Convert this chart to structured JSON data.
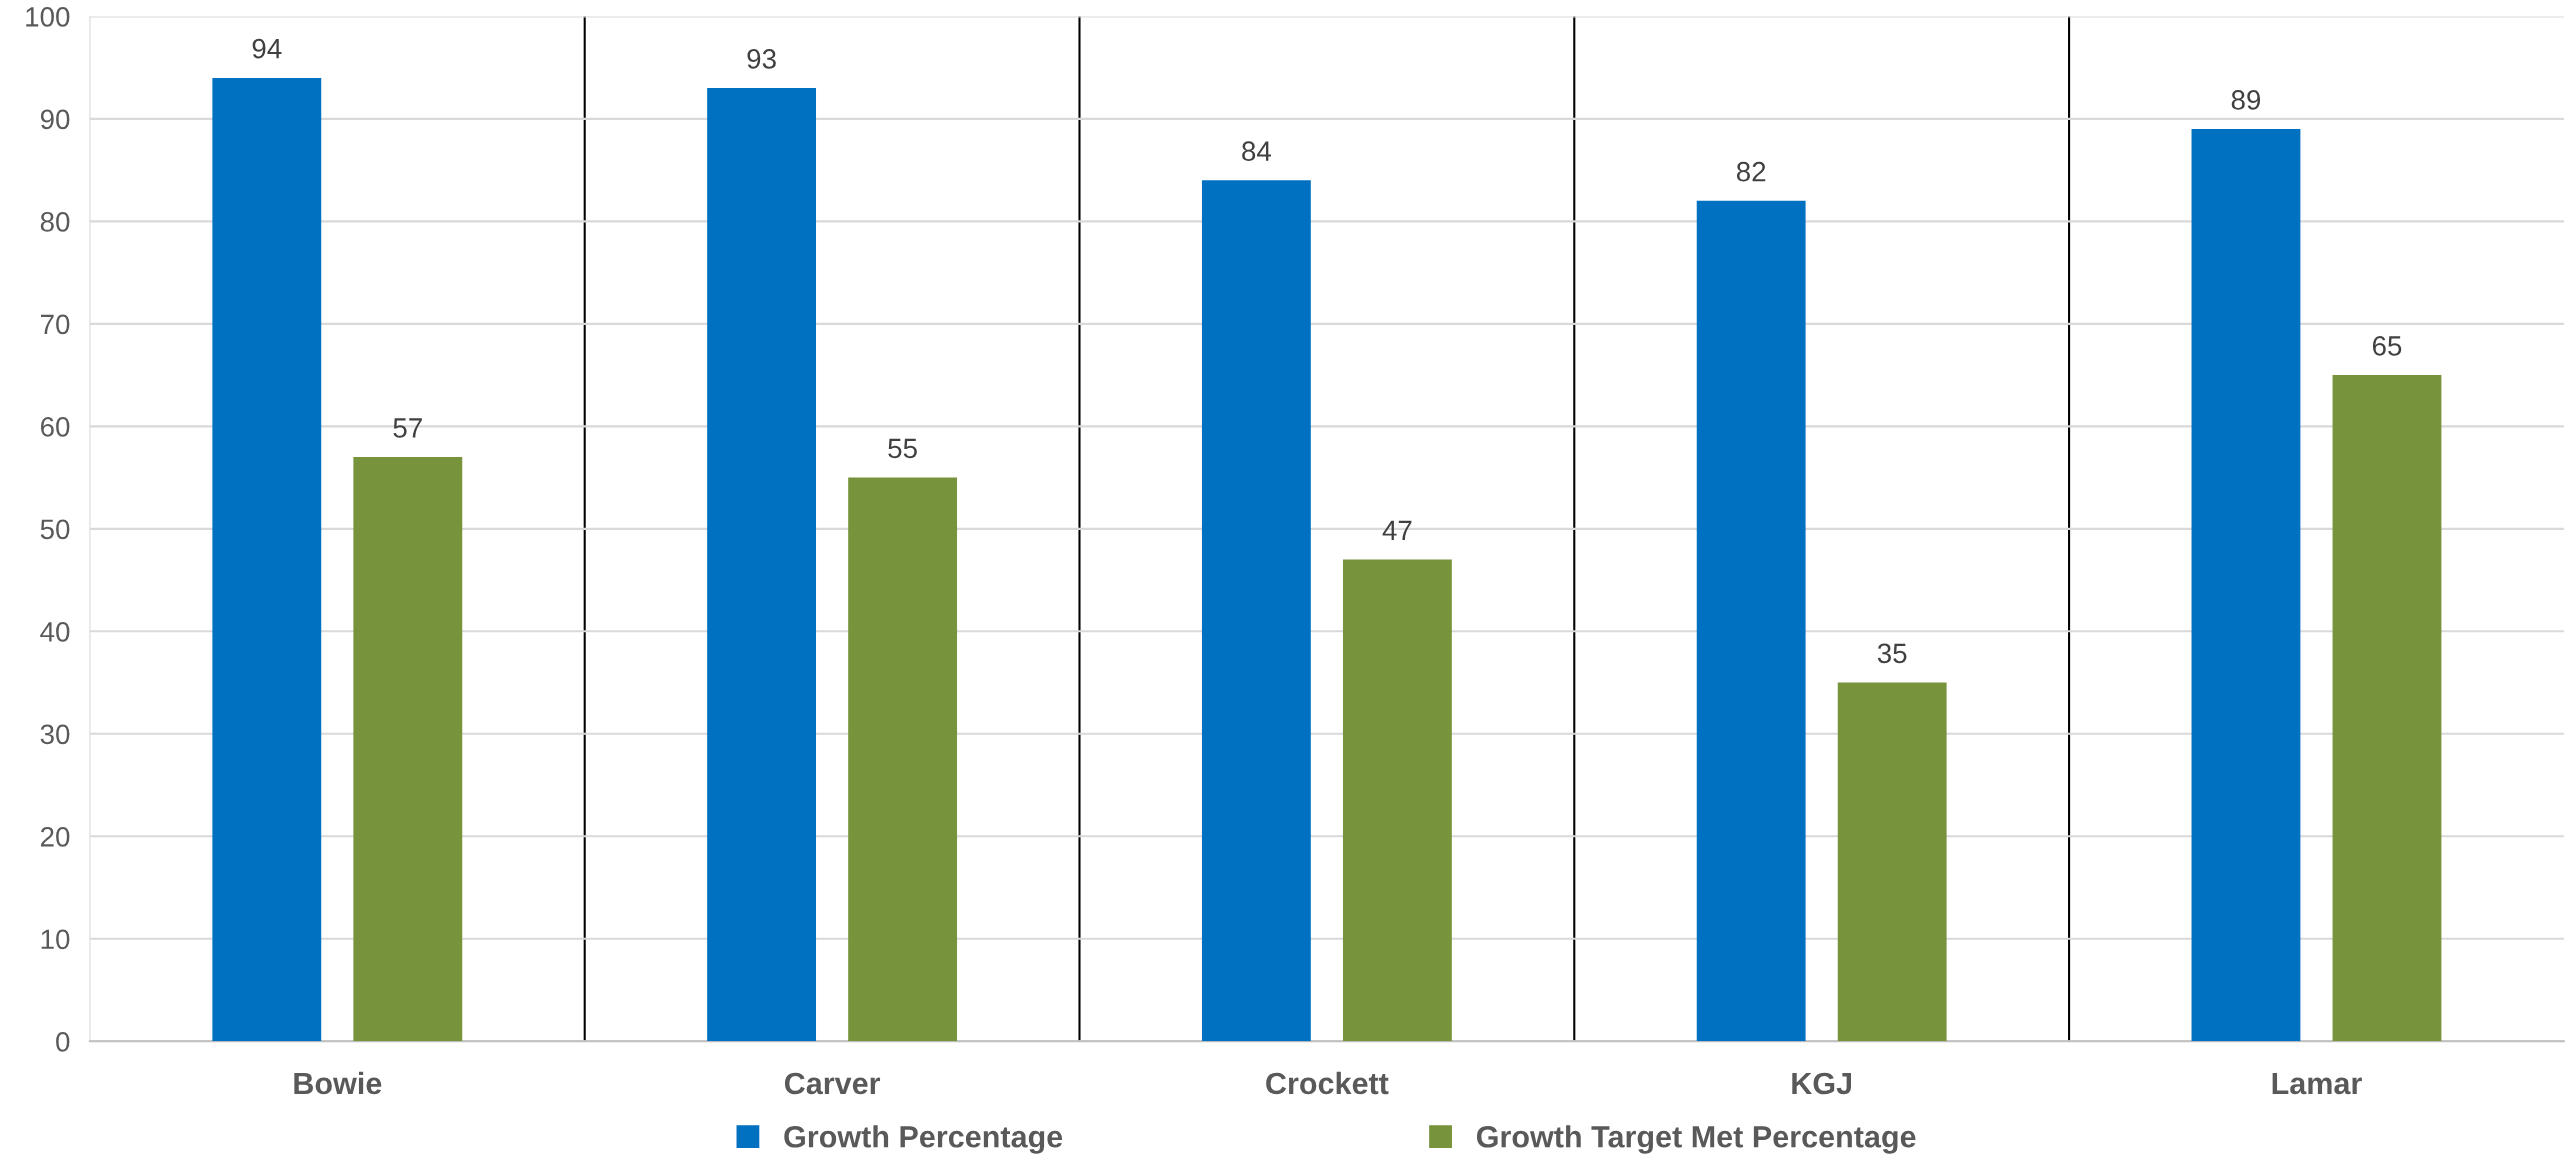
{
  "chart_data": {
    "type": "bar",
    "categories": [
      "Bowie",
      "Carver",
      "Crockett",
      "KGJ",
      "Lamar"
    ],
    "series": [
      {
        "name": "Growth Percentage",
        "color": "#0070c0",
        "values": [
          94,
          93,
          84,
          82,
          89
        ]
      },
      {
        "name": "Growth Target Met Percentage",
        "color": "#77933c",
        "values": [
          57,
          55,
          47,
          35,
          65
        ]
      }
    ],
    "ylim": [
      0,
      100
    ],
    "yticks": [
      0,
      10,
      20,
      30,
      40,
      50,
      60,
      70,
      80,
      90,
      100
    ],
    "grid": true,
    "legend": "bottom",
    "data_labels": true
  }
}
